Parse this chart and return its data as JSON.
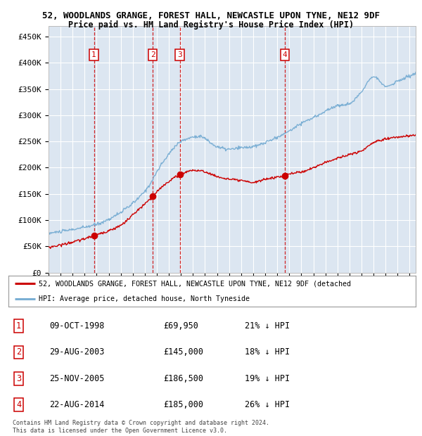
{
  "title": "52, WOODLANDS GRANGE, FOREST HALL, NEWCASTLE UPON TYNE, NE12 9DF",
  "subtitle": "Price paid vs. HM Land Registry's House Price Index (HPI)",
  "ylim": [
    0,
    470000
  ],
  "yticks": [
    0,
    50000,
    100000,
    150000,
    200000,
    250000,
    300000,
    350000,
    400000,
    450000
  ],
  "ytick_labels": [
    "£0",
    "£50K",
    "£100K",
    "£150K",
    "£200K",
    "£250K",
    "£300K",
    "£350K",
    "£400K",
    "£450K"
  ],
  "plot_bg_color": "#dce6f1",
  "grid_color": "#ffffff",
  "hpi_line_color": "#7bafd4",
  "price_line_color": "#cc0000",
  "sale_marker_color": "#cc0000",
  "annotation_box_color": "#cc0000",
  "annotation_text_color": "#cc0000",
  "legend_label_price": "52, WOODLANDS GRANGE, FOREST HALL, NEWCASTLE UPON TYNE, NE12 9DF (detached",
  "legend_label_hpi": "HPI: Average price, detached house, North Tyneside",
  "sales": [
    {
      "id": 1,
      "date_num": 1998.77,
      "price": 69950,
      "label": "1"
    },
    {
      "id": 2,
      "date_num": 2003.66,
      "price": 145000,
      "label": "2"
    },
    {
      "id": 3,
      "date_num": 2005.9,
      "price": 186500,
      "label": "3"
    },
    {
      "id": 4,
      "date_num": 2014.65,
      "price": 185000,
      "label": "4"
    }
  ],
  "table_data": [
    {
      "num": "1",
      "date": "09-OCT-1998",
      "price": "£69,950",
      "hpi": "21% ↓ HPI"
    },
    {
      "num": "2",
      "date": "29-AUG-2003",
      "price": "£145,000",
      "hpi": "18% ↓ HPI"
    },
    {
      "num": "3",
      "date": "25-NOV-2005",
      "price": "£186,500",
      "hpi": "19% ↓ HPI"
    },
    {
      "num": "4",
      "date": "22-AUG-2014",
      "price": "£185,000",
      "hpi": "26% ↓ HPI"
    }
  ],
  "footer": "Contains HM Land Registry data © Crown copyright and database right 2024.\nThis data is licensed under the Open Government Licence v3.0.",
  "xmin": 1995.0,
  "xmax": 2025.5,
  "hpi_anchors_x": [
    1995,
    1997,
    1999,
    2001,
    2003,
    2004.5,
    2006,
    2007.5,
    2009,
    2010,
    2011,
    2012,
    2013,
    2014,
    2015,
    2016,
    2017,
    2018,
    2019,
    2020,
    2021,
    2022,
    2023,
    2024,
    2025.5
  ],
  "hpi_anchors_y": [
    75000,
    82000,
    92000,
    115000,
    155000,
    210000,
    250000,
    260000,
    240000,
    235000,
    238000,
    240000,
    248000,
    258000,
    270000,
    285000,
    295000,
    308000,
    318000,
    322000,
    345000,
    375000,
    355000,
    365000,
    380000
  ],
  "price_anchors_x": [
    1995,
    1997,
    1998.77,
    2000,
    2001,
    2002,
    2003.66,
    2004.5,
    2005.9,
    2007,
    2008,
    2009,
    2010,
    2011,
    2012,
    2013,
    2014.65,
    2015,
    2016,
    2017,
    2018,
    2019,
    2020,
    2021,
    2022,
    2023,
    2024,
    2025.5
  ],
  "price_anchors_y": [
    48000,
    58000,
    69950,
    80000,
    90000,
    110000,
    145000,
    165000,
    186500,
    195000,
    192000,
    183000,
    178000,
    175000,
    172000,
    178000,
    185000,
    188000,
    192000,
    200000,
    210000,
    218000,
    225000,
    232000,
    248000,
    255000,
    258000,
    262000
  ]
}
